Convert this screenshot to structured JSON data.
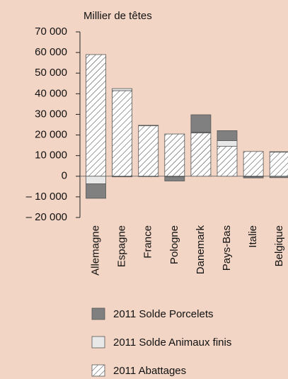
{
  "chart_data": {
    "type": "stacked-bar",
    "title": "Millier de têtes",
    "categories": [
      "Allemagne",
      "Espagne",
      "France",
      "Pologne",
      "Danemark",
      "Pays-Bas",
      "Italie",
      "Belgique"
    ],
    "series": [
      {
        "name": "2011 Solde Porcelets",
        "color": "#808080",
        "values": [
          -7000,
          -300,
          -200,
          -2000,
          8500,
          4800,
          -500,
          -700
        ]
      },
      {
        "name": "2011 Solde Animaux finis",
        "color": "#e8e8e8",
        "values": [
          -3700,
          1000,
          200,
          -300,
          300,
          2800,
          -300,
          200
        ]
      },
      {
        "name": "2011 Abattages",
        "color": "#ffffff",
        "hatch": true,
        "values": [
          59000,
          41500,
          24500,
          20500,
          21000,
          14500,
          12000,
          11700
        ]
      }
    ],
    "ylim": [
      -20000,
      70000
    ],
    "yticks": [
      {
        "value": 70000,
        "label": "70 000"
      },
      {
        "value": 60000,
        "label": "60 000"
      },
      {
        "value": 50000,
        "label": "50 000"
      },
      {
        "value": 40000,
        "label": "40 000"
      },
      {
        "value": 30000,
        "label": "30 000"
      },
      {
        "value": 20000,
        "label": "20 000"
      },
      {
        "value": 10000,
        "label": "10 000"
      },
      0,
      {
        "value": -10000,
        "label": "– 10 000"
      },
      {
        "value": -20000,
        "label": "– 20 000"
      }
    ],
    "grid": false
  }
}
